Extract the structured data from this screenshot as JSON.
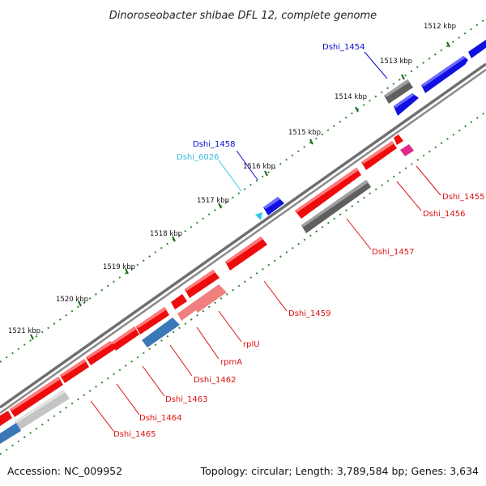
{
  "title": "Dinoroseobacter shibae DFL 12, complete genome",
  "footer": {
    "accession": "Accession: NC_009952",
    "summary": "Topology: circular; Length: 3,789,584 bp; Genes: 3,634"
  },
  "colors": {
    "forward_gene": "#1010e0",
    "reverse_gene": "#ee0b0b",
    "pseudogene": "#5f5f5f",
    "rna_gene": "#3a78b8",
    "light_red": "#f08080",
    "light_gray": "#c4c4c4",
    "magenta": "#e02a8a",
    "cyan": "#30c8e8",
    "tick_dot": "#2a8a2a",
    "backbone": "#7a7a7a"
  },
  "ticks": [
    "1512 kbp",
    "1513 kbp",
    "1514 kbp",
    "1515 kbp",
    "1516 kbp",
    "1517 kbp",
    "1518 kbp",
    "1519 kbp",
    "1520 kbp",
    "1521 kbp"
  ],
  "gene_labels": [
    {
      "text": "Dshi_1454",
      "color": "#0a0ad0"
    },
    {
      "text": "Dshi_1458",
      "color": "#0a0ad0"
    },
    {
      "text": "Dshi_6026",
      "color": "#30b8e0"
    },
    {
      "text": "Dshi_1455",
      "color": "#dd1111"
    },
    {
      "text": "Dshi_1456",
      "color": "#dd1111"
    },
    {
      "text": "Dshi_1457",
      "color": "#dd1111"
    },
    {
      "text": "Dshi_1459",
      "color": "#dd1111"
    },
    {
      "text": "rplU",
      "color": "#dd1111"
    },
    {
      "text": "rpmA",
      "color": "#dd1111"
    },
    {
      "text": "Dshi_1462",
      "color": "#dd1111"
    },
    {
      "text": "Dshi_1463",
      "color": "#dd1111"
    },
    {
      "text": "Dshi_1464",
      "color": "#dd1111"
    },
    {
      "text": "Dshi_1465",
      "color": "#dd1111"
    }
  ]
}
